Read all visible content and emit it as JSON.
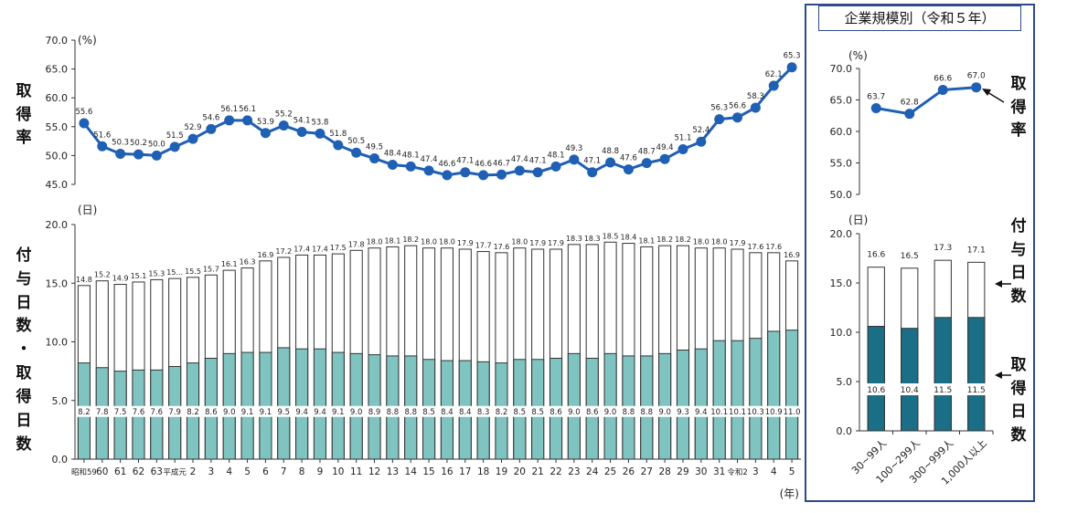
{
  "left_labels": {
    "rate": [
      "取",
      "得",
      "率"
    ],
    "days": [
      "付",
      "与",
      "日",
      "数",
      "・",
      "取",
      "得",
      "日",
      "数"
    ]
  },
  "inset_title": "企業規模別（令和５年）",
  "inset_labels": {
    "rate": [
      "取",
      "得",
      "率"
    ],
    "granted": [
      "付",
      "与",
      "日",
      "数"
    ],
    "taken": [
      "取",
      "得",
      "日",
      "数"
    ]
  },
  "chart_data": [
    {
      "type": "line",
      "panel": "main-rate",
      "unit_label": "(%)",
      "ylim": [
        45.0,
        70.0
      ],
      "yticks": [
        "45.0",
        "50.0",
        "55.0",
        "60.0",
        "65.0",
        "70.0"
      ],
      "categories": [
        "昭和59",
        "60",
        "61",
        "62",
        "63",
        "平成元",
        "2",
        "3",
        "4",
        "5",
        "6",
        "7",
        "8",
        "9",
        "10",
        "11",
        "12",
        "13",
        "14",
        "15",
        "16",
        "17",
        "18",
        "19",
        "20",
        "21",
        "22",
        "23",
        "24",
        "25",
        "26",
        "27",
        "28",
        "29",
        "30",
        "31",
        "令和2",
        "3",
        "4",
        "5"
      ],
      "values": [
        55.6,
        51.6,
        50.3,
        50.2,
        50.0,
        51.5,
        52.9,
        54.6,
        56.1,
        56.1,
        53.9,
        55.2,
        54.1,
        53.8,
        51.8,
        50.5,
        49.5,
        48.4,
        48.1,
        47.4,
        46.6,
        47.1,
        46.6,
        46.7,
        47.4,
        47.1,
        48.1,
        49.3,
        47.1,
        48.8,
        47.6,
        48.7,
        49.4,
        51.1,
        52.4,
        56.3,
        56.6,
        58.3,
        62.1,
        65.3
      ],
      "color": "#1f5fb4"
    },
    {
      "type": "bar",
      "panel": "main-days",
      "unit_label": "(日)",
      "x_unit_label": "(年)",
      "ylim": [
        0.0,
        20.0
      ],
      "yticks": [
        "0.0",
        "5.0",
        "10.0",
        "15.0",
        "20.0"
      ],
      "categories": [
        "昭和59",
        "60",
        "61",
        "62",
        "63",
        "平成元",
        "2",
        "3",
        "4",
        "5",
        "6",
        "7",
        "8",
        "9",
        "10",
        "11",
        "12",
        "13",
        "14",
        "15",
        "16",
        "17",
        "18",
        "19",
        "20",
        "21",
        "22",
        "23",
        "24",
        "25",
        "26",
        "27",
        "28",
        "29",
        "30",
        "31",
        "令和2",
        "3",
        "4",
        "5"
      ],
      "granted": [
        14.8,
        15.2,
        14.9,
        15.1,
        15.3,
        15.4,
        15.5,
        15.7,
        16.1,
        16.3,
        16.9,
        17.2,
        17.4,
        17.4,
        17.5,
        17.8,
        18.0,
        18.1,
        18.2,
        18.0,
        18.0,
        17.9,
        17.7,
        17.6,
        18.0,
        17.9,
        17.9,
        18.3,
        18.3,
        18.5,
        18.4,
        18.1,
        18.2,
        18.2,
        18.0,
        18.0,
        17.9,
        17.6,
        17.6,
        16.9
      ],
      "granted_labels": [
        "14.8",
        "15.2",
        "14.9",
        "15.1",
        "15.3",
        "15...",
        "15.5",
        "15.7",
        "16.1",
        "16.3",
        "16.9",
        "17.2",
        "17.4",
        "17.4",
        "17.5",
        "17.8",
        "18.0",
        "18.1",
        "18.2",
        "18.0",
        "18.0",
        "17.9",
        "17.7",
        "17.6",
        "18.0",
        "17.9",
        "17.9",
        "18.3",
        "18.3",
        "18.5",
        "18.4",
        "18.1",
        "18.2",
        "18.2",
        "18.0",
        "18.0",
        "17.9",
        "17.6",
        "17.6",
        "16.9"
      ],
      "taken": [
        8.2,
        7.8,
        7.5,
        7.6,
        7.6,
        7.9,
        8.2,
        8.6,
        9.0,
        9.1,
        9.1,
        9.5,
        9.4,
        9.4,
        9.1,
        9.0,
        8.9,
        8.8,
        8.8,
        8.5,
        8.4,
        8.4,
        8.3,
        8.2,
        8.5,
        8.5,
        8.6,
        9.0,
        8.6,
        9.0,
        8.8,
        8.8,
        9.0,
        9.3,
        9.4,
        10.1,
        10.1,
        10.3,
        10.9,
        11.0
      ],
      "taken_labels": [
        "8.2",
        "7.8",
        "7.5",
        "7.6",
        "7.6",
        "7.9",
        "8.2",
        "8.6",
        "9.0",
        "9.1",
        "9.1",
        "9.5",
        "9.4",
        "9.4",
        "9.1",
        "9.0",
        "8.9",
        "8.8",
        "8.8",
        "8.5",
        "8.4",
        "8.4",
        "8.3",
        "8.2",
        "8.5",
        "8.5",
        "8.6",
        "9.0",
        "8.6",
        "9.0",
        "8.8",
        "8.8",
        "9.0",
        "9.3",
        "9.4",
        "10.1",
        "10.1",
        "10.3",
        "10.9",
        "11.0"
      ],
      "granted_color": "#ffffff",
      "taken_color": "#7fc4c0"
    },
    {
      "type": "line",
      "panel": "inset-rate",
      "unit_label": "(%)",
      "ylim": [
        50.0,
        70.0
      ],
      "yticks": [
        "50.0",
        "55.0",
        "60.0",
        "65.0",
        "70.0"
      ],
      "categories": [
        "30~99人",
        "100~299人",
        "300~999人",
        "1,000人以上"
      ],
      "values": [
        63.7,
        62.8,
        66.6,
        67.0
      ],
      "color": "#1f5fb4"
    },
    {
      "type": "bar",
      "panel": "inset-days",
      "unit_label": "(日)",
      "ylim": [
        0.0,
        20.0
      ],
      "yticks": [
        "0.0",
        "5.0",
        "10.0",
        "15.0",
        "20.0"
      ],
      "categories": [
        "30~99人",
        "100~299人",
        "300~999人",
        "1,000人以上"
      ],
      "granted": [
        16.6,
        16.5,
        17.3,
        17.1
      ],
      "taken": [
        10.6,
        10.4,
        11.5,
        11.5
      ],
      "granted_color": "#ffffff",
      "taken_color": "#1a6e85"
    }
  ]
}
